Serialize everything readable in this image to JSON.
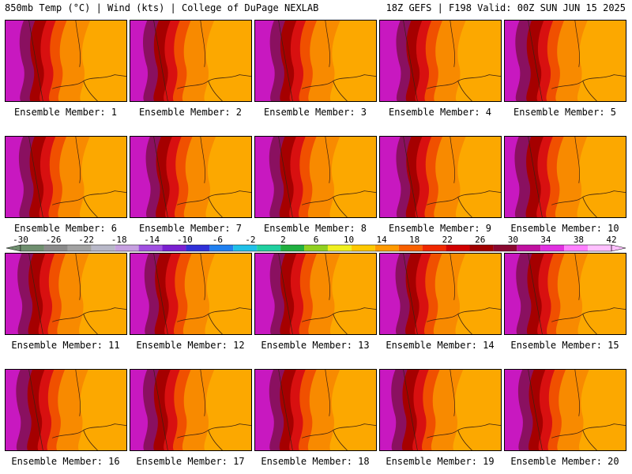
{
  "header": {
    "left": "850mb Temp (°C) | Wind (kts) | College of DuPage NEXLAB",
    "right": "18Z GEFS | F198 Valid: 00Z SUN JUN 15 2025"
  },
  "members": [
    {
      "label": "Ensemble Member: 1",
      "west_warmth": 0.85
    },
    {
      "label": "Ensemble Member: 2",
      "west_warmth": 0.75
    },
    {
      "label": "Ensemble Member: 3",
      "west_warmth": 0.9
    },
    {
      "label": "Ensemble Member: 4",
      "west_warmth": 1.0
    },
    {
      "label": "Ensemble Member: 5",
      "west_warmth": 0.6
    },
    {
      "label": "Ensemble Member: 6",
      "west_warmth": 0.8
    },
    {
      "label": "Ensemble Member: 7",
      "west_warmth": 0.95
    },
    {
      "label": "Ensemble Member: 8",
      "west_warmth": 0.85
    },
    {
      "label": "Ensemble Member: 9",
      "west_warmth": 1.0
    },
    {
      "label": "Ensemble Member: 10",
      "west_warmth": 0.55
    },
    {
      "label": "Ensemble Member: 11",
      "west_warmth": 0.7
    },
    {
      "label": "Ensemble Member: 12",
      "west_warmth": 0.85
    },
    {
      "label": "Ensemble Member: 13",
      "west_warmth": 0.9
    },
    {
      "label": "Ensemble Member: 14",
      "west_warmth": 0.95
    },
    {
      "label": "Ensemble Member: 15",
      "west_warmth": 0.65
    },
    {
      "label": "Ensemble Member: 16",
      "west_warmth": 0.6
    },
    {
      "label": "Ensemble Member: 17",
      "west_warmth": 0.75
    },
    {
      "label": "Ensemble Member: 18",
      "west_warmth": 0.85
    },
    {
      "label": "Ensemble Member: 19",
      "west_warmth": 0.65
    },
    {
      "label": "Ensemble Member: 20",
      "west_warmth": 0.8
    }
  ],
  "colorbar": {
    "ticks": [
      "-30",
      "-26",
      "-22",
      "-18",
      "-14",
      "-10",
      "-6",
      "-2",
      "2",
      "6",
      "10",
      "14",
      "18",
      "22",
      "26",
      "30",
      "34",
      "38",
      "42"
    ],
    "colors": [
      "#6f8f6f",
      "#8a8a8a",
      "#a2a2a2",
      "#b8b8c8",
      "#c6a0e0",
      "#a050e0",
      "#7a20d0",
      "#3030d8",
      "#2080f0",
      "#20c0e8",
      "#20d0a0",
      "#20b040",
      "#90d020",
      "#f0f020",
      "#ffc800",
      "#ff9a00",
      "#f86000",
      "#f02800",
      "#d00000",
      "#a00000",
      "#8a0830",
      "#c010a0",
      "#e030e0",
      "#ff80ff",
      "#ffc0ff"
    ]
  },
  "map_colors": {
    "magenta": "#c818c0",
    "purple": "#8a1060",
    "darkred": "#a50000",
    "red": "#d81010",
    "orange_red": "#f05000",
    "orange": "#f88a00",
    "light_orange": "#fca800"
  }
}
